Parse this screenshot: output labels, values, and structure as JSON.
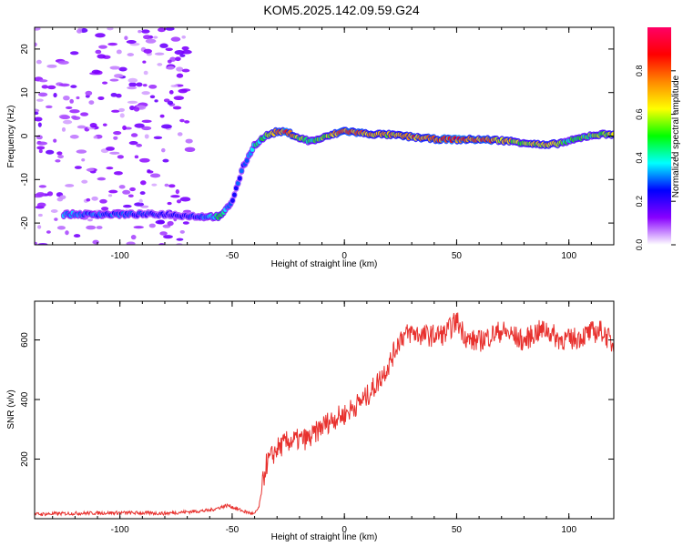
{
  "title": "KOM5.2025.142.09.59.G24",
  "chart_data": [
    {
      "type": "heatmap",
      "xlabel": "Height of straight line (km)",
      "ylabel": "Frequency (Hz)",
      "xlim": [
        -138,
        120
      ],
      "ylim": [
        -25,
        25
      ],
      "xticks": [
        -100,
        -50,
        0,
        50,
        100
      ],
      "yticks": [
        -20,
        -10,
        0,
        10,
        20
      ],
      "colorbar": {
        "label": "Normalized spectral amplitude",
        "range": [
          0,
          1
        ],
        "ticks": [
          "0.0",
          "0.2",
          "0.4",
          "0.6",
          "0.8"
        ],
        "colors": [
          "#ffffff",
          "#8800ff",
          "#0000ff",
          "#00ffff",
          "#00ff00",
          "#ffff00",
          "#ff8800",
          "#ff0000",
          "#ff0066"
        ]
      },
      "ridge": {
        "x": [
          -125,
          -100,
          -80,
          -65,
          -55,
          -50,
          -45,
          -40,
          -35,
          -30,
          -25,
          -20,
          -15,
          -10,
          0,
          10,
          20,
          30,
          40,
          50,
          60,
          70,
          80,
          90,
          100,
          110,
          120
        ],
        "y": [
          -18,
          -18,
          -18,
          -18.5,
          -18.5,
          -15,
          -7,
          -2,
          0,
          1.0,
          0.8,
          -0.5,
          -1.2,
          -0.5,
          1.2,
          0.5,
          0.3,
          -0.2,
          -0.7,
          -0.8,
          -0.8,
          -1.0,
          -1.5,
          -2.2,
          -1.2,
          0.2,
          0.5
        ],
        "amp": [
          0.35,
          0.3,
          0.25,
          0.28,
          0.5,
          0.3,
          0.3,
          0.45,
          0.55,
          0.75,
          0.95,
          0.6,
          0.5,
          0.55,
          0.9,
          0.75,
          0.7,
          0.85,
          0.8,
          0.9,
          0.85,
          0.75,
          0.6,
          0.75,
          0.5,
          0.55,
          0.7
        ]
      }
    },
    {
      "type": "line",
      "xlabel": "Height of straight line (km)",
      "ylabel": "SNR (v/v)",
      "xlim": [
        -138,
        120
      ],
      "ylim": [
        0,
        730
      ],
      "xticks": [
        -100,
        -50,
        0,
        50,
        100
      ],
      "yticks": [
        200,
        400,
        600
      ],
      "color": "#e8312e",
      "series": [
        {
          "x": [
            -138,
            -120,
            -100,
            -80,
            -60,
            -52,
            -45,
            -40,
            -38,
            -35,
            -30,
            -25,
            -20,
            -15,
            -10,
            -5,
            0,
            5,
            10,
            15,
            20,
            25,
            30,
            35,
            40,
            45,
            50,
            55,
            60,
            65,
            70,
            75,
            80,
            85,
            90,
            95,
            100,
            105,
            110,
            115,
            120
          ],
          "values": [
            15,
            18,
            20,
            18,
            28,
            45,
            25,
            15,
            40,
            180,
            235,
            260,
            265,
            270,
            310,
            335,
            350,
            380,
            410,
            460,
            520,
            610,
            625,
            615,
            615,
            620,
            665,
            600,
            595,
            615,
            630,
            615,
            595,
            625,
            635,
            605,
            600,
            610,
            625,
            630,
            580
          ]
        }
      ]
    }
  ]
}
